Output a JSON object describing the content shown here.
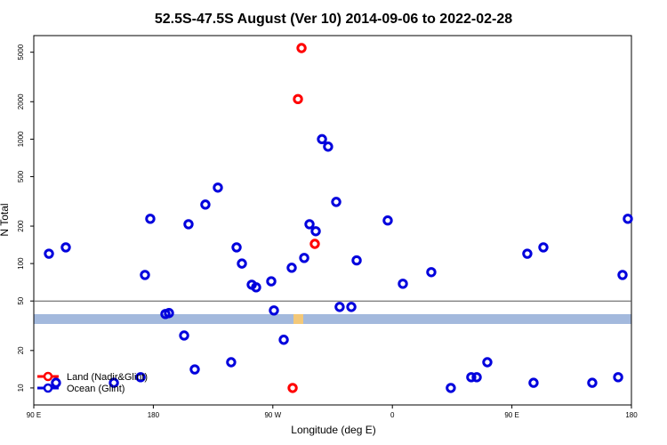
{
  "chart_data": {
    "type": "scatter",
    "title": "52.5S-47.5S August (Ver 10)   2014-09-06 to 2022-02-28",
    "x_label": "Longitude (deg E)",
    "y_label": "N Total",
    "xlim": [
      90,
      540
    ],
    "xticks": [
      {
        "value": 90,
        "label": "90 E"
      },
      {
        "value": 180,
        "label": "180"
      },
      {
        "value": 270,
        "label": "90 W"
      },
      {
        "value": 360,
        "label": "0"
      },
      {
        "value": 450,
        "label": "90 E"
      },
      {
        "value": 540,
        "label": "180"
      }
    ],
    "ylim": [
      7.3,
      6800
    ],
    "yticks": [
      10,
      20,
      50,
      100,
      200,
      500,
      1000,
      2000,
      5000
    ],
    "log_y": true,
    "hline": 50,
    "legend": "bottom-left",
    "series": [
      {
        "name": "Land (Nadir&Glint)",
        "color": "#ff0000",
        "x": [
          291.6,
          288.9,
          301.6,
          284.9
        ],
        "values": [
          5400,
          2100,
          144,
          10
        ]
      },
      {
        "name": "Ocean (Glint)",
        "color": "#0000dd",
        "x": [
          101.4,
          114.1,
          106.7,
          150.3,
          170.4,
          173.7,
          177.7,
          189.1,
          191.8,
          203.2,
          206.5,
          211.2,
          219.2,
          228.6,
          238.6,
          242.7,
          246.7,
          254.1,
          257.4,
          268.8,
          270.8,
          278.2,
          284.2,
          293.6,
          297.6,
          302.3,
          307.0,
          311.6,
          317.7,
          320.3,
          329.1,
          333.1,
          356.5,
          367.9,
          389.3,
          404.0,
          419.4,
          423.5,
          431.5,
          461.6,
          466.3,
          473.7,
          510.5,
          530.0,
          533.3,
          537.3
        ],
        "values": [
          120,
          135,
          11,
          11,
          12.2,
          81,
          229,
          39.3,
          40,
          26.4,
          207,
          14.1,
          298,
          408,
          16.1,
          135,
          100,
          67.6,
          64.4,
          72,
          42,
          24.4,
          92.5,
          111,
          207,
          182,
          1000,
          871,
          313,
          44.8,
          44.8,
          106,
          222,
          68.8,
          85.3,
          10,
          12.2,
          12.2,
          16.1,
          120,
          11,
          135,
          11,
          12.2,
          81,
          229
        ]
      }
    ]
  }
}
